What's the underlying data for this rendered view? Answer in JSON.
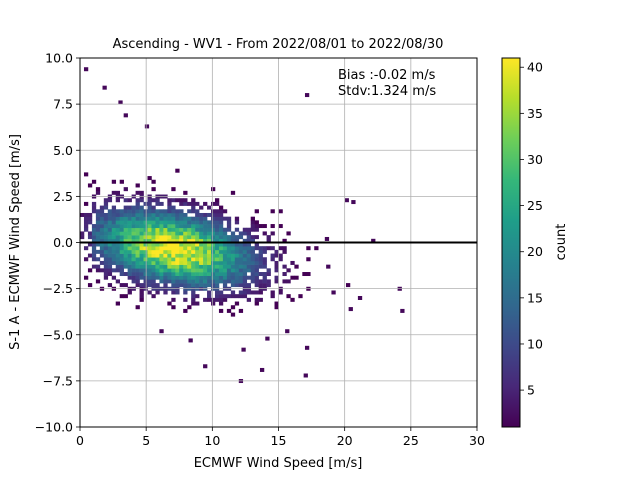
{
  "chart_data": {
    "type": "heatmap",
    "title": "Ascending - WV1 - From 2022/08/01 to 2022/08/30",
    "xlabel": "ECMWF Wind Speed [m/s]",
    "ylabel": "S-1 A - ECMWF Wind Speed [m/s]",
    "xlim": [
      0,
      30
    ],
    "ylim": [
      -10,
      10
    ],
    "x_ticks": [
      "0",
      "5",
      "10",
      "15",
      "20",
      "25",
      "30"
    ],
    "y_ticks": [
      "10.0",
      "7.5",
      "5.0",
      "2.5",
      "0.0",
      "−2.5",
      "−5.0",
      "−7.5",
      "−10.0"
    ],
    "x_tick_values": [
      0,
      5,
      10,
      15,
      20,
      25,
      30
    ],
    "y_tick_values": [
      10,
      7.5,
      5,
      2.5,
      0,
      -2.5,
      -5,
      -7.5,
      -10
    ],
    "grid": true,
    "reference_line_y": 0,
    "annotations": [
      "Bias :-0.02 m/s",
      "Stdv:1.324 m/s"
    ],
    "colorbar": {
      "label": "count",
      "range": [
        1,
        41
      ],
      "ticks": [
        "40",
        "35",
        "30",
        "25",
        "20",
        "15",
        "10",
        "5"
      ],
      "tick_values": [
        40,
        35,
        30,
        25,
        20,
        15,
        10,
        5
      ],
      "colormap": "viridis"
    },
    "density_center": {
      "x": 7,
      "y": -0.3
    },
    "max_count": 41,
    "outliers": [
      {
        "x": 0.3,
        "y": 9.3
      },
      {
        "x": 1.7,
        "y": 8.3
      },
      {
        "x": 17,
        "y": 7.9
      },
      {
        "x": 2.9,
        "y": 7.5
      },
      {
        "x": 3.3,
        "y": 6.8
      },
      {
        "x": 4.9,
        "y": 6.2
      },
      {
        "x": 20.0,
        "y": 2.2
      },
      {
        "x": 20.5,
        "y": 2.1
      },
      {
        "x": 24.0,
        "y": -2.6
      },
      {
        "x": 24.2,
        "y": -3.8
      },
      {
        "x": 21.0,
        "y": -3.1
      },
      {
        "x": 20.3,
        "y": -3.7
      },
      {
        "x": 18.5,
        "y": 0.1
      },
      {
        "x": 22.0,
        "y": 0.0
      },
      {
        "x": 17.0,
        "y": -5.8
      },
      {
        "x": 12.0,
        "y": -7.6
      },
      {
        "x": 13.6,
        "y": -7.0
      },
      {
        "x": 9.3,
        "y": -6.8
      },
      {
        "x": 16.9,
        "y": -7.3
      },
      {
        "x": 8.2,
        "y": -5.4
      },
      {
        "x": 12.2,
        "y": -5.9
      },
      {
        "x": 14.0,
        "y": -5.3
      },
      {
        "x": 15.5,
        "y": -4.9
      },
      {
        "x": 6.0,
        "y": -4.9
      },
      {
        "x": 19.0,
        "y": -2.8
      },
      {
        "x": 18.6,
        "y": -1.4
      }
    ]
  }
}
